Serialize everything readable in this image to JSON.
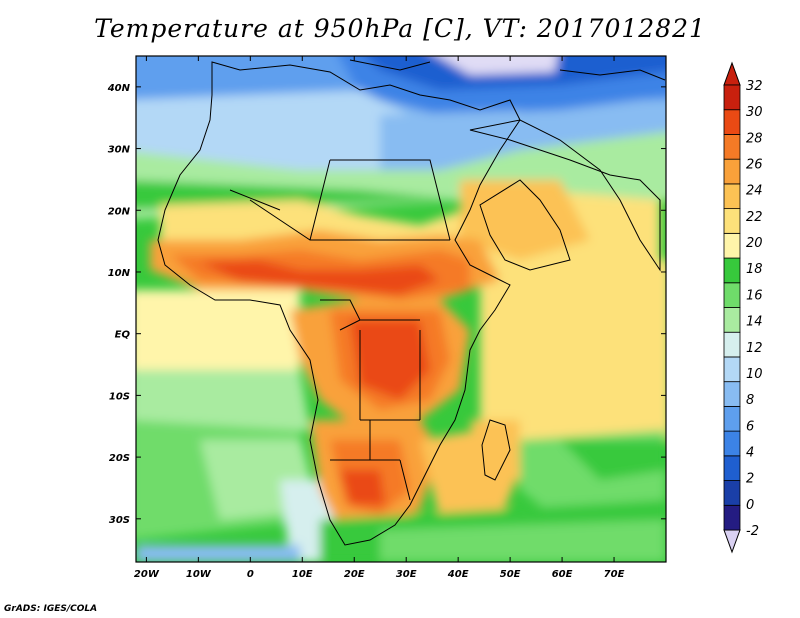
{
  "title": "Temperature at 950hPa [C], VT: 2017012821",
  "credit": "GrADS: IGES/COLA",
  "map": {
    "lon_range": [
      -22,
      80
    ],
    "lat_range": [
      -37,
      45
    ],
    "lon_ticks": [
      {
        "value": -20,
        "label": "20W"
      },
      {
        "value": -10,
        "label": "10W"
      },
      {
        "value": 0,
        "label": "0"
      },
      {
        "value": 10,
        "label": "10E"
      },
      {
        "value": 20,
        "label": "20E"
      },
      {
        "value": 30,
        "label": "30E"
      },
      {
        "value": 40,
        "label": "40E"
      },
      {
        "value": 50,
        "label": "50E"
      },
      {
        "value": 60,
        "label": "60E"
      },
      {
        "value": 70,
        "label": "70E"
      }
    ],
    "lat_ticks": [
      {
        "value": 40,
        "label": "40N"
      },
      {
        "value": 30,
        "label": "30N"
      },
      {
        "value": 20,
        "label": "20N"
      },
      {
        "value": 10,
        "label": "10N"
      },
      {
        "value": 0,
        "label": "EQ"
      },
      {
        "value": -10,
        "label": "10S"
      },
      {
        "value": -20,
        "label": "20S"
      },
      {
        "value": -30,
        "label": "30S"
      }
    ]
  },
  "colorbar": {
    "levels": [
      "-2",
      "0",
      "2",
      "4",
      "6",
      "8",
      "10",
      "12",
      "14",
      "16",
      "18",
      "20",
      "22",
      "24",
      "26",
      "28",
      "30",
      "32"
    ],
    "colors": [
      "#241c82",
      "#1a3fa8",
      "#1f5fd0",
      "#3c83e6",
      "#5e9fee",
      "#88bcf2",
      "#b3d8f6",
      "#d6efee",
      "#a9eba0",
      "#6fdc6a",
      "#37c93c",
      "#fff5aa",
      "#fde17a",
      "#fcc254",
      "#f9a13a",
      "#f57a26",
      "#ea4a14",
      "#c8200e"
    ],
    "under_color": "#d9d1f2",
    "over_color": "#c8200e"
  }
}
